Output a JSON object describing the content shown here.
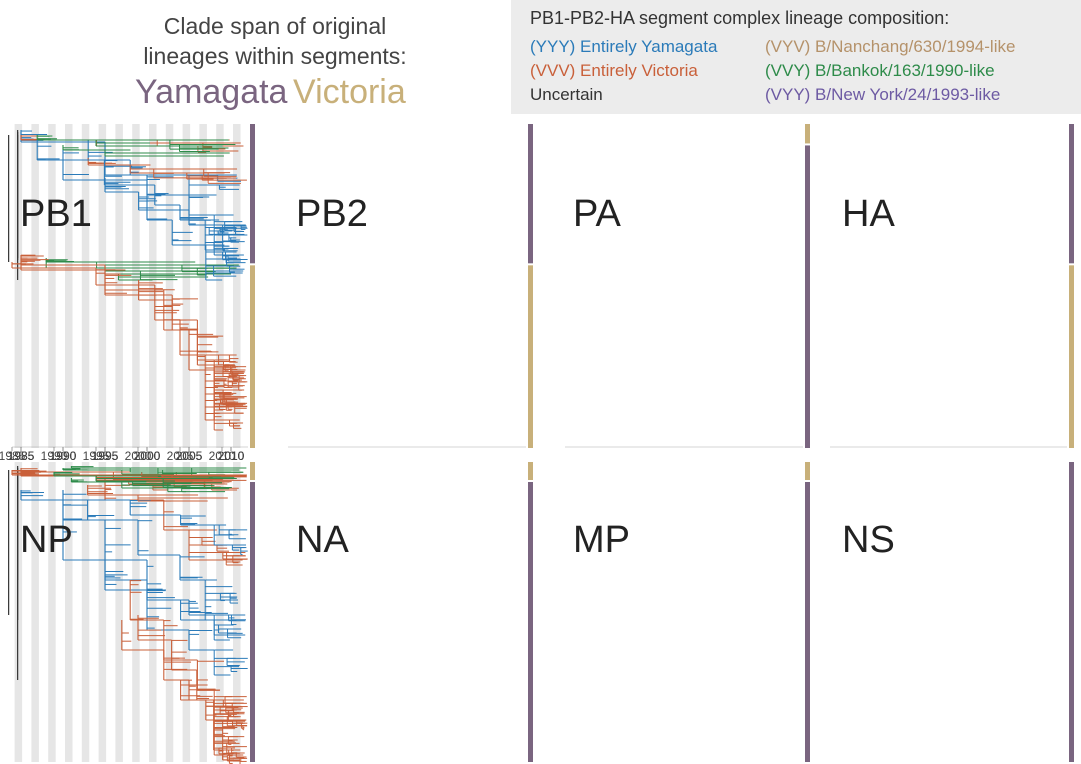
{
  "colors": {
    "yamagata_branch": "#2b7bb9",
    "victoria_branch": "#c9603a",
    "uncertain_branch": "#333333",
    "nanchang_branch": "#b5926a",
    "bankok_branch": "#2e8b4a",
    "newyork_branch": "#6d5aa3",
    "yamagata_bar": "#7a6580",
    "victoria_bar": "#c8b07a",
    "stripe": "#e6e6e6"
  },
  "header": {
    "clade_title_line1": "Clade span of original",
    "clade_title_line2": "lineages within segments:",
    "yamagata_label": "Yamagata",
    "victoria_label": "Victoria",
    "composition_title": "PB1-PB2-HA segment complex lineage composition:",
    "legend": [
      {
        "text": "(YYY) Entirely Yamagata",
        "color": "#2b7bb9"
      },
      {
        "text": "(VVV) Entirely Victoria",
        "color": "#c9603a"
      },
      {
        "text": "Uncertain",
        "color": "#333333"
      },
      {
        "text": "(VYV) B/Nanchang/630/1994-like",
        "color": "#b5926a"
      },
      {
        "text": "(VVY) B/Bankok/163/1990-like",
        "color": "#2e8b4a"
      },
      {
        "text": "(VYY) B/New York/24/1993-like",
        "color": "#6d5aa3"
      }
    ]
  },
  "year_ticks": [
    "1985",
    "1990",
    "1995",
    "2000",
    "2005",
    "2010"
  ],
  "panels": [
    {
      "segment": "PB1",
      "span": [
        "Yamagata",
        "Victoria"
      ]
    },
    {
      "segment": "PB2",
      "span": [
        "Yamagata",
        "Victoria"
      ]
    },
    {
      "segment": "PA",
      "span": [
        "Victoria",
        "Yamagata"
      ]
    },
    {
      "segment": "HA",
      "span": [
        "Yamagata",
        "Victoria"
      ]
    },
    {
      "segment": "NP",
      "span": [
        "Victoria",
        "Yamagata"
      ]
    },
    {
      "segment": "NA",
      "span": [
        "Victoria",
        "Yamagata"
      ]
    },
    {
      "segment": "MP",
      "span": [
        "Victoria",
        "Yamagata"
      ]
    },
    {
      "segment": "NS",
      "span": [
        "Yamagata"
      ]
    }
  ]
}
